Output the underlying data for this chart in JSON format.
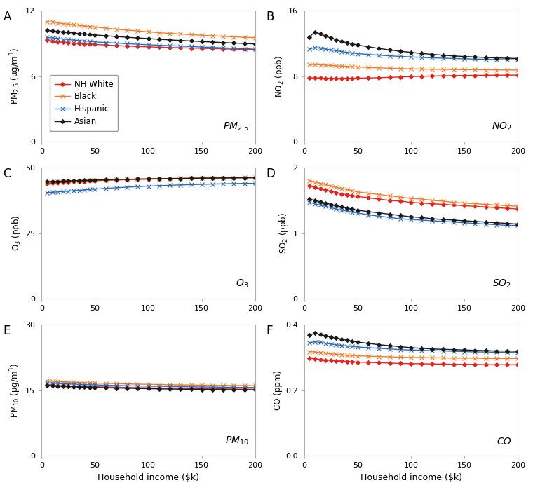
{
  "x_values": [
    5,
    10,
    15,
    20,
    25,
    30,
    35,
    40,
    45,
    50,
    60,
    70,
    80,
    90,
    100,
    110,
    120,
    130,
    140,
    150,
    160,
    170,
    180,
    190,
    200
  ],
  "panels": [
    {
      "label": "A",
      "ylabel": "PM$_{2.5}$ (μg/m$^{3}$)",
      "ylim": [
        0,
        12
      ],
      "yticks": [
        0,
        6,
        12
      ],
      "annotation": "PM$_{2.5}$",
      "show_legend": true,
      "lines": {
        "NH White": [
          9.3,
          9.2,
          9.15,
          9.1,
          9.05,
          9.0,
          8.98,
          8.95,
          8.92,
          8.9,
          8.85,
          8.8,
          8.75,
          8.72,
          8.68,
          8.65,
          8.62,
          8.6,
          8.57,
          8.55,
          8.52,
          8.5,
          8.47,
          8.45,
          8.43
        ],
        "Black": [
          11.0,
          10.95,
          10.88,
          10.82,
          10.76,
          10.7,
          10.65,
          10.6,
          10.55,
          10.5,
          10.4,
          10.3,
          10.22,
          10.14,
          10.06,
          9.98,
          9.92,
          9.86,
          9.8,
          9.75,
          9.7,
          9.65,
          9.6,
          9.56,
          9.52
        ],
        "Hispanic": [
          9.55,
          9.5,
          9.45,
          9.4,
          9.35,
          9.3,
          9.26,
          9.22,
          9.18,
          9.14,
          9.08,
          9.02,
          8.97,
          8.92,
          8.87,
          8.83,
          8.79,
          8.75,
          8.71,
          8.67,
          8.63,
          8.59,
          8.55,
          8.51,
          8.47
        ],
        "Asian": [
          10.2,
          10.15,
          10.1,
          10.05,
          10.0,
          9.95,
          9.9,
          9.86,
          9.82,
          9.78,
          9.7,
          9.63,
          9.56,
          9.5,
          9.44,
          9.38,
          9.32,
          9.27,
          9.22,
          9.17,
          9.12,
          9.07,
          9.03,
          8.99,
          8.95
        ]
      }
    },
    {
      "label": "B",
      "ylabel": "NO$_2$ (ppb)",
      "ylim": [
        0,
        16
      ],
      "yticks": [
        0,
        8,
        16
      ],
      "annotation": "NO$_2$",
      "show_legend": false,
      "lines": {
        "NH White": [
          7.8,
          7.78,
          7.76,
          7.75,
          7.74,
          7.73,
          7.74,
          7.74,
          7.75,
          7.76,
          7.78,
          7.82,
          7.86,
          7.9,
          7.95,
          7.99,
          8.02,
          8.05,
          8.07,
          8.09,
          8.1,
          8.11,
          8.12,
          8.13,
          8.14
        ],
        "Black": [
          9.4,
          9.42,
          9.38,
          9.34,
          9.3,
          9.26,
          9.22,
          9.18,
          9.15,
          9.12,
          9.06,
          9.01,
          8.97,
          8.93,
          8.9,
          8.87,
          8.85,
          8.83,
          8.81,
          8.8,
          8.79,
          8.78,
          8.77,
          8.76,
          8.75
        ],
        "Hispanic": [
          11.3,
          11.5,
          11.4,
          11.3,
          11.2,
          11.1,
          11.0,
          10.9,
          10.82,
          10.75,
          10.65,
          10.56,
          10.48,
          10.41,
          10.35,
          10.29,
          10.24,
          10.2,
          10.16,
          10.12,
          10.09,
          10.06,
          10.03,
          10.01,
          9.99
        ],
        "Asian": [
          12.8,
          13.4,
          13.15,
          12.9,
          12.65,
          12.45,
          12.25,
          12.08,
          11.93,
          11.8,
          11.58,
          11.38,
          11.2,
          11.04,
          10.9,
          10.77,
          10.66,
          10.56,
          10.47,
          10.4,
          10.34,
          10.28,
          10.23,
          10.19,
          10.15
        ]
      }
    },
    {
      "label": "C",
      "ylabel": "O$_3$ (ppb)",
      "ylim": [
        0,
        50
      ],
      "yticks": [
        0,
        25,
        50
      ],
      "annotation": "O$_3$",
      "show_legend": false,
      "lines": {
        "NH White": [
          44.0,
          44.1,
          44.25,
          44.4,
          44.5,
          44.6,
          44.7,
          44.8,
          44.9,
          45.0,
          45.15,
          45.28,
          45.4,
          45.5,
          45.6,
          45.68,
          45.76,
          45.83,
          45.9,
          45.96,
          46.02,
          46.07,
          46.12,
          46.16,
          46.2
        ],
        "Black": [
          44.4,
          44.5,
          44.6,
          44.7,
          44.8,
          44.9,
          44.98,
          45.06,
          45.14,
          45.22,
          45.35,
          45.47,
          45.57,
          45.66,
          45.74,
          45.81,
          45.87,
          45.93,
          45.98,
          46.03,
          46.07,
          46.11,
          46.15,
          46.18,
          46.2
        ],
        "Hispanic": [
          40.5,
          40.6,
          40.75,
          40.9,
          41.05,
          41.2,
          41.35,
          41.5,
          41.65,
          41.8,
          42.08,
          42.33,
          42.56,
          42.77,
          42.95,
          43.12,
          43.27,
          43.4,
          43.52,
          43.63,
          43.73,
          43.82,
          43.9,
          43.97,
          44.03
        ],
        "Asian": [
          44.6,
          44.7,
          44.8,
          44.88,
          44.95,
          45.02,
          45.08,
          45.14,
          45.2,
          45.26,
          45.37,
          45.47,
          45.56,
          45.64,
          45.71,
          45.78,
          45.84,
          45.89,
          45.94,
          45.98,
          46.02,
          46.06,
          46.09,
          46.12,
          46.14
        ]
      }
    },
    {
      "label": "D",
      "ylabel": "SO$_2$ (ppb)",
      "ylim": [
        0,
        2
      ],
      "yticks": [
        0,
        1,
        2
      ],
      "annotation": "SO$_2$",
      "show_legend": false,
      "lines": {
        "NH White": [
          1.72,
          1.7,
          1.68,
          1.66,
          1.64,
          1.62,
          1.6,
          1.59,
          1.57,
          1.56,
          1.54,
          1.52,
          1.5,
          1.49,
          1.47,
          1.46,
          1.45,
          1.44,
          1.43,
          1.42,
          1.41,
          1.4,
          1.39,
          1.38,
          1.37
        ],
        "Black": [
          1.8,
          1.78,
          1.76,
          1.74,
          1.72,
          1.7,
          1.68,
          1.67,
          1.65,
          1.63,
          1.61,
          1.59,
          1.57,
          1.55,
          1.53,
          1.52,
          1.5,
          1.49,
          1.47,
          1.46,
          1.45,
          1.44,
          1.43,
          1.42,
          1.41
        ],
        "Hispanic": [
          1.47,
          1.45,
          1.43,
          1.41,
          1.39,
          1.37,
          1.35,
          1.34,
          1.32,
          1.31,
          1.28,
          1.26,
          1.24,
          1.22,
          1.21,
          1.2,
          1.19,
          1.18,
          1.17,
          1.16,
          1.15,
          1.14,
          1.13,
          1.12,
          1.12
        ],
        "Asian": [
          1.52,
          1.5,
          1.48,
          1.46,
          1.44,
          1.42,
          1.4,
          1.38,
          1.37,
          1.35,
          1.33,
          1.31,
          1.29,
          1.27,
          1.25,
          1.24,
          1.22,
          1.21,
          1.2,
          1.19,
          1.18,
          1.17,
          1.16,
          1.15,
          1.14
        ]
      }
    },
    {
      "label": "E",
      "ylabel": "PM$_{10}$ (μg/m$^{3}$)",
      "ylim": [
        0,
        30
      ],
      "yticks": [
        0,
        15,
        30
      ],
      "annotation": "PM$_{10}$",
      "show_legend": false,
      "lines": {
        "NH White": [
          16.3,
          16.2,
          16.1,
          16.05,
          16.0,
          15.95,
          15.9,
          15.87,
          15.84,
          15.8,
          15.75,
          15.7,
          15.65,
          15.6,
          15.55,
          15.5,
          15.47,
          15.43,
          15.4,
          15.37,
          15.34,
          15.31,
          15.28,
          15.25,
          15.23
        ],
        "Black": [
          17.2,
          17.1,
          17.0,
          16.95,
          16.9,
          16.85,
          16.8,
          16.75,
          16.7,
          16.65,
          16.58,
          16.52,
          16.46,
          16.41,
          16.36,
          16.32,
          16.28,
          16.24,
          16.21,
          16.18,
          16.15,
          16.12,
          16.1,
          16.08,
          16.06
        ],
        "Hispanic": [
          16.7,
          16.62,
          16.56,
          16.5,
          16.45,
          16.4,
          16.35,
          16.31,
          16.27,
          16.23,
          16.16,
          16.1,
          16.04,
          15.99,
          15.94,
          15.9,
          15.86,
          15.82,
          15.79,
          15.76,
          15.73,
          15.7,
          15.68,
          15.65,
          15.63
        ],
        "Asian": [
          16.1,
          16.02,
          15.96,
          15.9,
          15.85,
          15.8,
          15.76,
          15.72,
          15.68,
          15.64,
          15.57,
          15.51,
          15.46,
          15.41,
          15.36,
          15.32,
          15.28,
          15.25,
          15.22,
          15.19,
          15.16,
          15.14,
          15.12,
          15.1,
          15.08
        ]
      }
    },
    {
      "label": "F",
      "ylabel": "CO (ppm)",
      "ylim": [
        0,
        0.4
      ],
      "yticks": [
        0.0,
        0.2,
        0.4
      ],
      "annotation": "CO",
      "show_legend": false,
      "lines": {
        "NH White": [
          0.298,
          0.296,
          0.294,
          0.292,
          0.291,
          0.29,
          0.289,
          0.288,
          0.287,
          0.286,
          0.285,
          0.284,
          0.283,
          0.282,
          0.281,
          0.281,
          0.28,
          0.28,
          0.279,
          0.279,
          0.279,
          0.278,
          0.278,
          0.278,
          0.278
        ],
        "Black": [
          0.318,
          0.317,
          0.315,
          0.313,
          0.311,
          0.31,
          0.308,
          0.307,
          0.306,
          0.305,
          0.304,
          0.303,
          0.302,
          0.301,
          0.3,
          0.3,
          0.299,
          0.299,
          0.298,
          0.298,
          0.298,
          0.297,
          0.297,
          0.297,
          0.297
        ],
        "Hispanic": [
          0.345,
          0.348,
          0.346,
          0.343,
          0.341,
          0.339,
          0.337,
          0.335,
          0.334,
          0.332,
          0.33,
          0.328,
          0.326,
          0.324,
          0.323,
          0.322,
          0.321,
          0.32,
          0.319,
          0.318,
          0.317,
          0.317,
          0.316,
          0.316,
          0.315
        ],
        "Asian": [
          0.368,
          0.374,
          0.37,
          0.366,
          0.362,
          0.359,
          0.356,
          0.353,
          0.35,
          0.347,
          0.343,
          0.339,
          0.336,
          0.333,
          0.33,
          0.328,
          0.326,
          0.325,
          0.324,
          0.323,
          0.322,
          0.321,
          0.32,
          0.32,
          0.319
        ]
      }
    }
  ],
  "group_order": [
    "NH White",
    "Black",
    "Hispanic",
    "Asian"
  ],
  "line_colors": [
    "#e8231e",
    "#f07d28",
    "#2b6bbf",
    "#1a1a1a"
  ],
  "xlabel": "Household income ($k)",
  "xticks": [
    0,
    50,
    100,
    150,
    200
  ],
  "xlim": [
    0,
    200
  ]
}
